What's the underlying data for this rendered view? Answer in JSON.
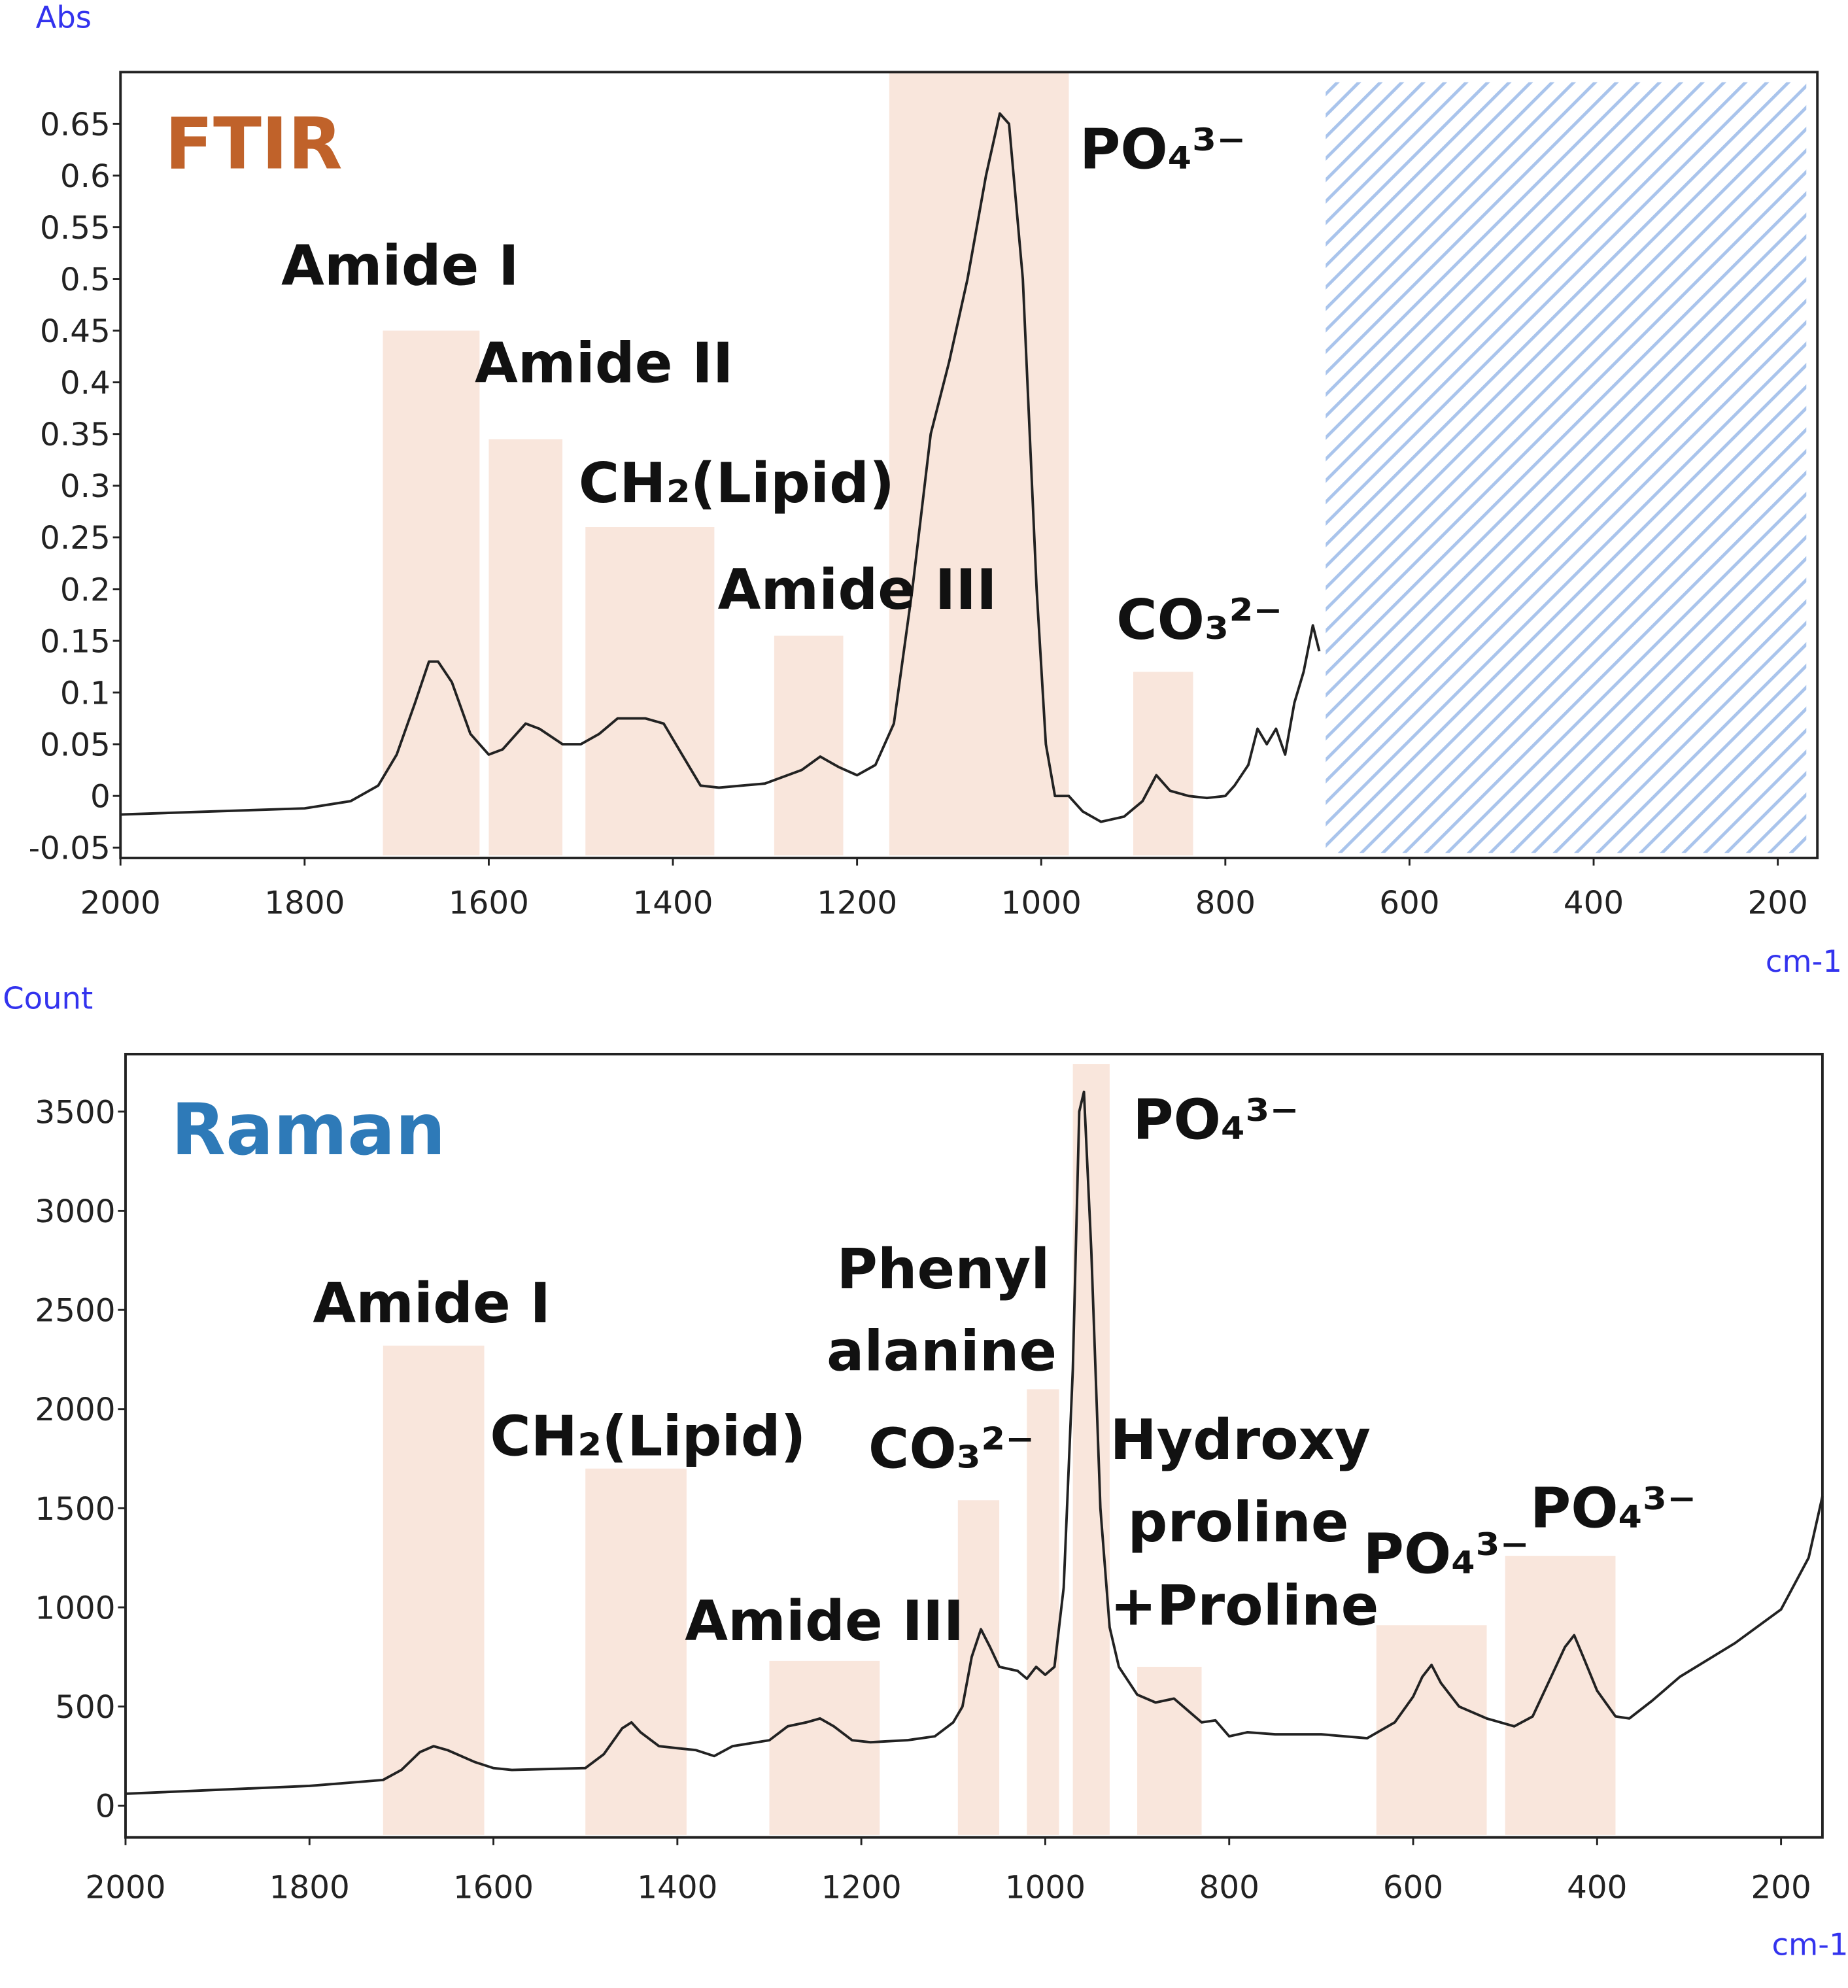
{
  "chart_data": [
    {
      "type": "line",
      "title": "FTIR",
      "title_color": "#c0622a",
      "y_label": "Abs",
      "x_label": "cm-1",
      "color": "#222222",
      "band_color": "#f9e6dc",
      "masked_color": "#a9c4ec",
      "xlim": [
        2000,
        157
      ],
      "xticks": [
        2000,
        1800,
        1600,
        1400,
        1200,
        1000,
        800,
        600,
        400,
        200
      ],
      "ylim": [
        -0.06,
        0.7
      ],
      "yticks": [
        -0.05,
        0,
        0.05,
        0.1,
        0.15,
        0.2,
        0.25,
        0.3,
        0.35,
        0.4,
        0.45,
        0.5,
        0.55,
        0.6,
        0.65
      ],
      "masked_range": [
        691,
        169
      ],
      "x": [
        2000,
        1900,
        1800,
        1750,
        1720,
        1700,
        1680,
        1665,
        1655,
        1640,
        1620,
        1600,
        1585,
        1560,
        1545,
        1520,
        1500,
        1480,
        1460,
        1430,
        1410,
        1390,
        1370,
        1350,
        1300,
        1260,
        1240,
        1220,
        1200,
        1180,
        1160,
        1140,
        1120,
        1100,
        1080,
        1060,
        1045,
        1035,
        1020,
        1005,
        995,
        985,
        970,
        955,
        935,
        910,
        890,
        875,
        860,
        840,
        820,
        800,
        790,
        775,
        765,
        755,
        745,
        735,
        725,
        715,
        705,
        698
      ],
      "values": [
        -0.018,
        -0.015,
        -0.012,
        -0.005,
        0.01,
        0.04,
        0.09,
        0.13,
        0.13,
        0.11,
        0.06,
        0.04,
        0.045,
        0.07,
        0.065,
        0.05,
        0.05,
        0.06,
        0.075,
        0.075,
        0.07,
        0.04,
        0.01,
        0.008,
        0.012,
        0.025,
        0.038,
        0.028,
        0.02,
        0.03,
        0.07,
        0.2,
        0.35,
        0.42,
        0.5,
        0.6,
        0.66,
        0.65,
        0.5,
        0.2,
        0.05,
        0.0,
        0.0,
        -0.015,
        -0.025,
        -0.02,
        -0.005,
        0.02,
        0.005,
        0.0,
        -0.002,
        0.0,
        0.01,
        0.03,
        0.065,
        0.05,
        0.065,
        0.04,
        0.09,
        0.12,
        0.165,
        0.14
      ],
      "bands": [
        {
          "x": [
            1715,
            1610
          ],
          "top": 0.45
        },
        {
          "x": [
            1600,
            1520
          ],
          "top": 0.345
        },
        {
          "x": [
            1495,
            1355
          ],
          "top": 0.26
        },
        {
          "x": [
            1290,
            1215
          ],
          "top": 0.155
        },
        {
          "x": [
            1165,
            970
          ],
          "top": 0.7
        },
        {
          "x": [
            900,
            835
          ],
          "top": 0.12
        }
      ],
      "annotations": [
        "Amide I",
        "Amide II",
        "CH₂(Lipid)",
        "Amide III",
        "PO₄³⁻",
        "CO₃²⁻"
      ]
    },
    {
      "type": "line",
      "title": "Raman",
      "title_color": "#2e7ab8",
      "y_label": "Count",
      "x_label": "cm-1",
      "color": "#222222",
      "band_color": "#f9e6dc",
      "xlim": [
        2000,
        155
      ],
      "xticks": [
        2000,
        1800,
        1600,
        1400,
        1200,
        1000,
        800,
        600,
        400,
        200
      ],
      "ylim": [
        -160,
        3790
      ],
      "yticks": [
        0,
        500,
        1000,
        1500,
        2000,
        2500,
        3000,
        3500
      ],
      "x": [
        2000,
        1900,
        1800,
        1720,
        1700,
        1680,
        1665,
        1650,
        1620,
        1600,
        1580,
        1500,
        1480,
        1460,
        1450,
        1440,
        1420,
        1400,
        1380,
        1360,
        1340,
        1300,
        1280,
        1260,
        1245,
        1230,
        1210,
        1190,
        1150,
        1120,
        1100,
        1090,
        1080,
        1070,
        1060,
        1050,
        1030,
        1020,
        1010,
        1000,
        990,
        980,
        970,
        963,
        958,
        950,
        940,
        930,
        920,
        900,
        880,
        860,
        845,
        830,
        815,
        800,
        780,
        750,
        700,
        650,
        620,
        600,
        590,
        580,
        570,
        550,
        520,
        490,
        470,
        450,
        435,
        425,
        415,
        400,
        380,
        365,
        340,
        310,
        250,
        200,
        170,
        155
      ],
      "values": [
        60,
        80,
        100,
        130,
        180,
        270,
        300,
        280,
        220,
        190,
        180,
        190,
        260,
        390,
        420,
        370,
        300,
        290,
        280,
        250,
        300,
        330,
        400,
        420,
        440,
        400,
        330,
        320,
        330,
        350,
        420,
        500,
        750,
        890,
        800,
        700,
        680,
        640,
        700,
        660,
        700,
        1100,
        2200,
        3500,
        3600,
        2800,
        1500,
        900,
        700,
        560,
        520,
        540,
        480,
        420,
        430,
        350,
        370,
        360,
        360,
        340,
        420,
        550,
        650,
        710,
        620,
        500,
        440,
        400,
        450,
        650,
        800,
        860,
        750,
        580,
        450,
        440,
        530,
        650,
        820,
        990,
        1250,
        1560
      ],
      "bands": [
        {
          "x": [
            1720,
            1610
          ],
          "top": 2320
        },
        {
          "x": [
            1500,
            1390
          ],
          "top": 1700
        },
        {
          "x": [
            1300,
            1180
          ],
          "top": 730
        },
        {
          "x": [
            1095,
            1050
          ],
          "top": 1540
        },
        {
          "x": [
            1020,
            985
          ],
          "top": 2100
        },
        {
          "x": [
            970,
            930
          ],
          "top": 3740
        },
        {
          "x": [
            900,
            830
          ],
          "top": 700
        },
        {
          "x": [
            640,
            520
          ],
          "top": 910
        },
        {
          "x": [
            500,
            380
          ],
          "top": 1260
        }
      ],
      "annotations": [
        "Amide I",
        "CH₂(Lipid)",
        "Amide III",
        "Phenyl",
        "alanine",
        "CO₃²⁻",
        "PO₄³⁻",
        "Hydroxy",
        "proline",
        "+Proline",
        "PO₄³⁻",
        "PO₄³⁻"
      ]
    }
  ]
}
